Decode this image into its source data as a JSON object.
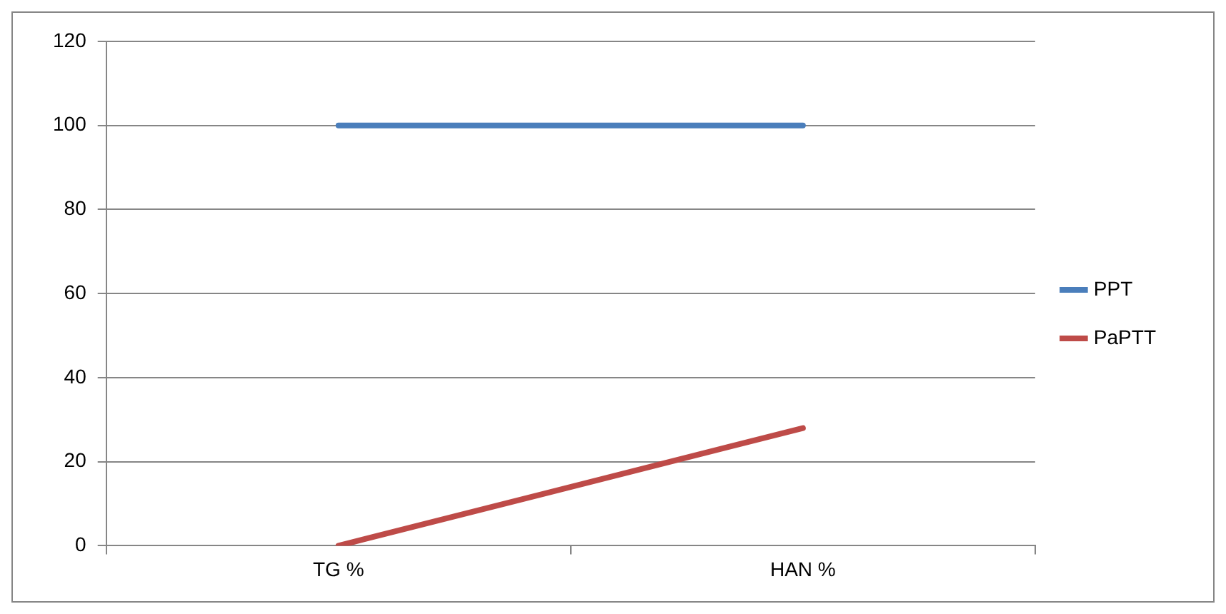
{
  "chart_data": {
    "type": "line",
    "categories": [
      "TG %",
      "HAN %"
    ],
    "series": [
      {
        "name": "PPT",
        "color": "#4a7ebb",
        "values": [
          100,
          100
        ]
      },
      {
        "name": "PaPTT",
        "color": "#be4b48",
        "values": [
          0,
          28
        ]
      }
    ],
    "ylim": [
      0,
      120
    ],
    "yticks": [
      0,
      20,
      40,
      60,
      80,
      100,
      120
    ],
    "grid": "y",
    "legend": "right",
    "marker": "none",
    "line_style": "solid"
  }
}
